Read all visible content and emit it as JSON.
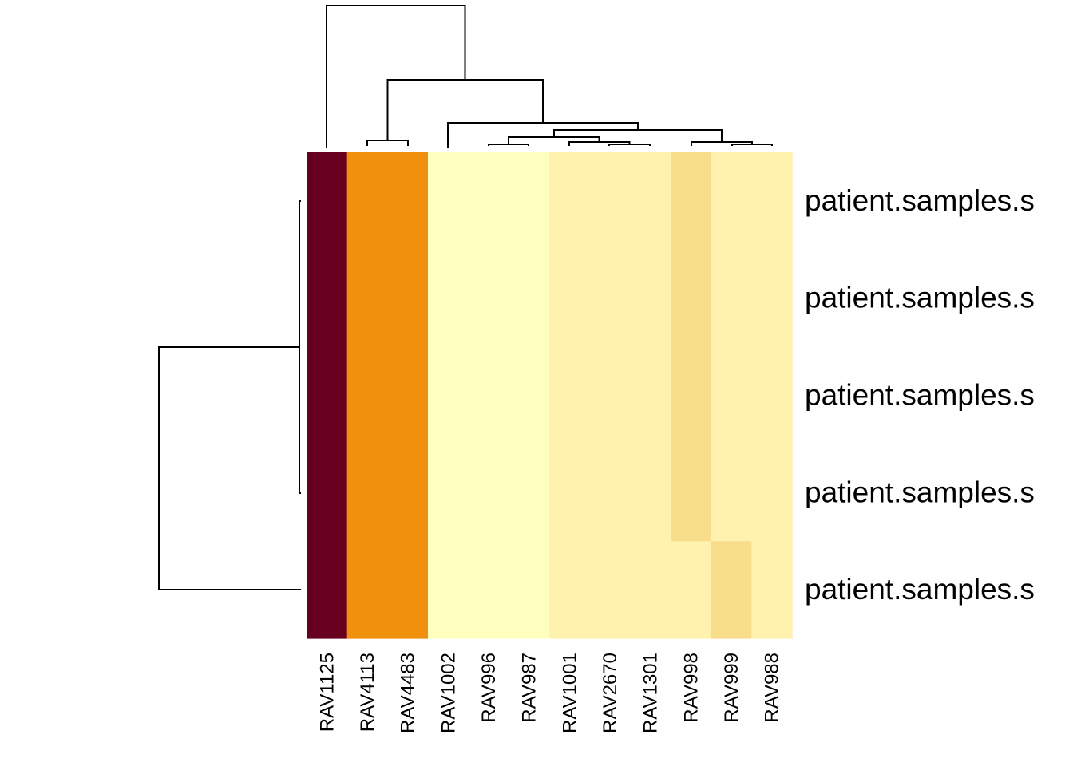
{
  "chart_data": {
    "type": "heatmap",
    "columns": [
      "RAV1125",
      "RAV4113",
      "RAV4483",
      "RAV1002",
      "RAV996",
      "RAV987",
      "RAV1001",
      "RAV2670",
      "RAV1301",
      "RAV998",
      "RAV999",
      "RAV988"
    ],
    "rows": [
      "patient.samples.s",
      "patient.samples.s",
      "patient.samples.s",
      "patient.samples.s",
      "patient.samples.s"
    ],
    "color_levels": [
      "#FFFFBF",
      "#FFF2AE",
      "#F8DE8B",
      "#F0900C",
      "#67001F"
    ],
    "values": [
      [
        4,
        3,
        3,
        0,
        0,
        0,
        1,
        1,
        1,
        2,
        1,
        1
      ],
      [
        4,
        3,
        3,
        0,
        0,
        0,
        1,
        1,
        1,
        2,
        1,
        1
      ],
      [
        4,
        3,
        3,
        0,
        0,
        0,
        1,
        1,
        1,
        2,
        1,
        1
      ],
      [
        4,
        3,
        3,
        0,
        0,
        0,
        1,
        1,
        1,
        2,
        1,
        1
      ],
      [
        4,
        3,
        3,
        0,
        0,
        0,
        1,
        1,
        1,
        1,
        2,
        1
      ]
    ],
    "column_dendrogram": true,
    "row_dendrogram": true,
    "title": "",
    "xlabel": "",
    "ylabel": ""
  }
}
